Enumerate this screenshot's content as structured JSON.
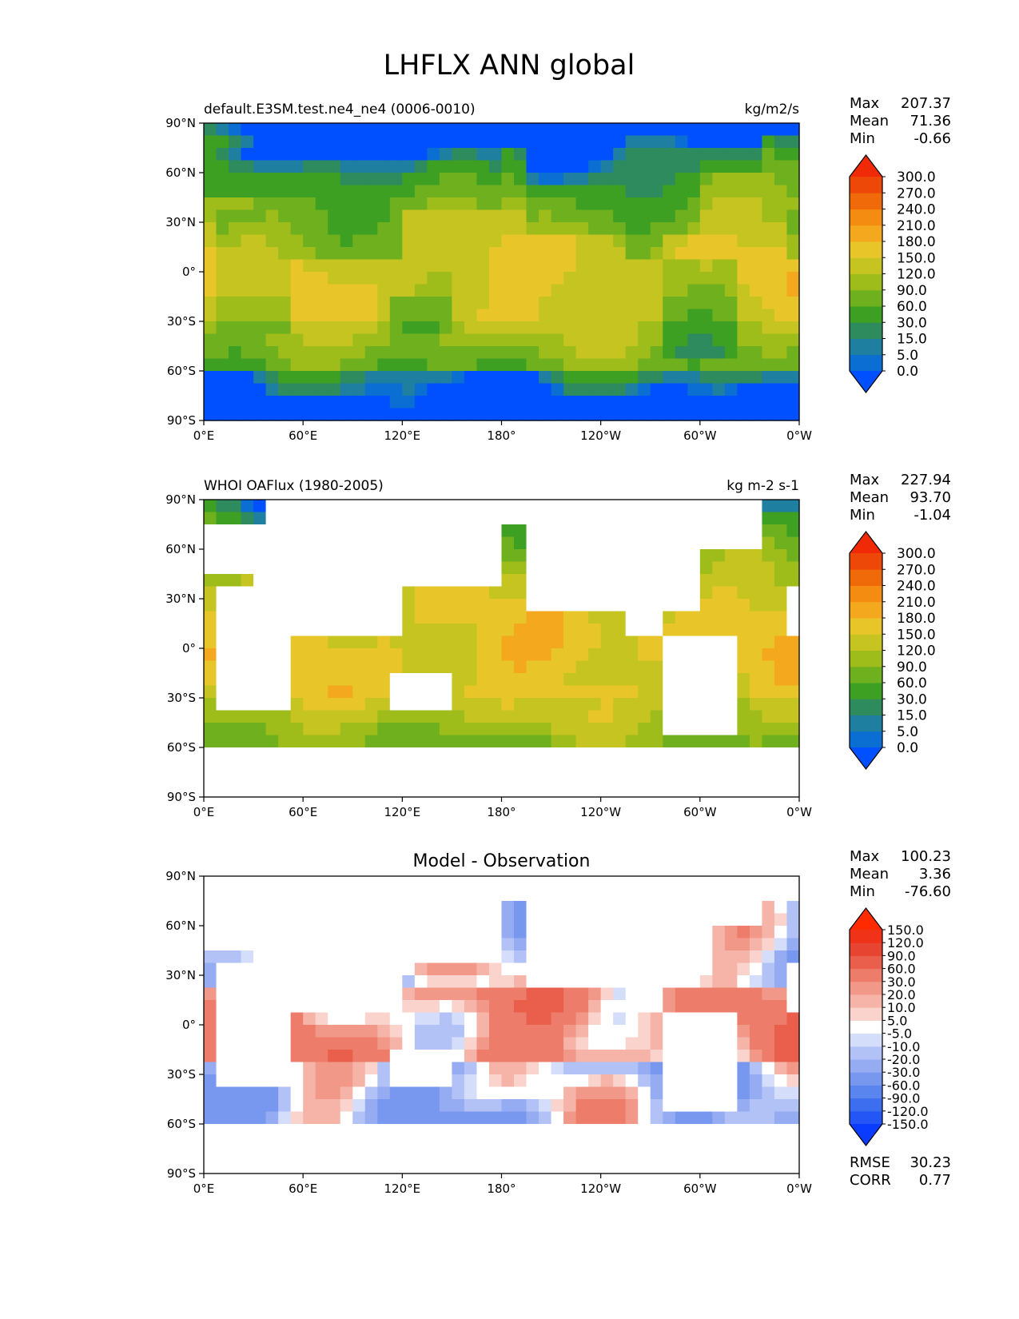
{
  "figure": {
    "title": "LHFLX ANN global"
  },
  "chart_data": [
    {
      "type": "heatmap",
      "kind": "filled-contour world map",
      "title_left": "default.E3SM.test.ne4_ne4 (0006-0010)",
      "title_center": "",
      "units": "kg/m2/s",
      "x_ticks": [
        "0°E",
        "60°E",
        "120°E",
        "180°",
        "120°W",
        "60°W",
        "0°W"
      ],
      "y_ticks": [
        "90°N",
        "60°N",
        "30°N",
        "0°",
        "30°S",
        "60°S",
        "90°S"
      ],
      "xlim": [
        0,
        360
      ],
      "ylim": [
        -90,
        90
      ],
      "stats": {
        "max": "207.37",
        "mean": "71.36",
        "min": "-0.66"
      },
      "colorbar": {
        "levels": [
          "0.0",
          "5.0",
          "15.0",
          "30.0",
          "60.0",
          "90.0",
          "120.0",
          "150.0",
          "180.0",
          "210.0",
          "240.0",
          "270.0",
          "300.0"
        ],
        "colors": [
          "#0050ff",
          "#0a6ed2",
          "#1f7fa0",
          "#2e8b5e",
          "#3da023",
          "#6fb01e",
          "#9ebc1a",
          "#c6c420",
          "#e8c62a",
          "#f4a81e",
          "#f48c12",
          "#f06a0a",
          "#ee4808",
          "#f02a06"
        ]
      }
    },
    {
      "type": "heatmap",
      "kind": "filled-contour world map (ocean only)",
      "title_left": "WHOI OAFlux (1980-2005)",
      "title_center": "",
      "units": "kg m-2 s-1",
      "x_ticks": [
        "0°E",
        "60°E",
        "120°E",
        "180°",
        "120°W",
        "60°W",
        "0°W"
      ],
      "y_ticks": [
        "90°N",
        "60°N",
        "30°N",
        "0°",
        "30°S",
        "60°S",
        "90°S"
      ],
      "xlim": [
        0,
        360
      ],
      "ylim": [
        -90,
        90
      ],
      "stats": {
        "max": "227.94",
        "mean": "93.70",
        "min": "-1.04"
      },
      "colorbar": {
        "levels": [
          "0.0",
          "5.0",
          "15.0",
          "30.0",
          "60.0",
          "90.0",
          "120.0",
          "150.0",
          "180.0",
          "210.0",
          "240.0",
          "270.0",
          "300.0"
        ],
        "colors": [
          "#0050ff",
          "#0a6ed2",
          "#1f7fa0",
          "#2e8b5e",
          "#3da023",
          "#6fb01e",
          "#9ebc1a",
          "#c6c420",
          "#e8c62a",
          "#f4a81e",
          "#f48c12",
          "#f06a0a",
          "#ee4808",
          "#f02a06"
        ]
      }
    },
    {
      "type": "heatmap",
      "kind": "difference map",
      "title_left": "",
      "title_center": "Model - Observation",
      "units": "",
      "x_ticks": [
        "0°E",
        "60°E",
        "120°E",
        "180°",
        "120°W",
        "60°W",
        "0°W"
      ],
      "y_ticks": [
        "90°N",
        "60°N",
        "30°N",
        "0°",
        "30°S",
        "60°S",
        "90°S"
      ],
      "xlim": [
        0,
        360
      ],
      "ylim": [
        -90,
        90
      ],
      "stats": {
        "max": "100.23",
        "mean": "3.36",
        "min": "-76.60"
      },
      "metrics": {
        "rmse": "30.23",
        "corr": "0.77"
      },
      "colorbar": {
        "levels": [
          "-150.0",
          "-120.0",
          "-90.0",
          "-60.0",
          "-30.0",
          "-20.0",
          "-10.0",
          "-5.0",
          "5.0",
          "10.0",
          "20.0",
          "30.0",
          "60.0",
          "90.0",
          "120.0",
          "150.0"
        ],
        "colors": [
          "#0a3cff",
          "#2456f5",
          "#3e6ef0",
          "#5a84ee",
          "#7898f0",
          "#96acf2",
          "#b2c2f6",
          "#d4ddfa",
          "#ffffff",
          "#fad4cc",
          "#f6b4a8",
          "#f29888",
          "#ee7c6a",
          "#ea5f4c",
          "#e84432",
          "#f03218",
          "#ff2a00"
        ]
      }
    }
  ],
  "labels": {
    "max": "Max",
    "mean": "Mean",
    "min": "Min",
    "rmse": "RMSE",
    "corr": "CORR"
  }
}
